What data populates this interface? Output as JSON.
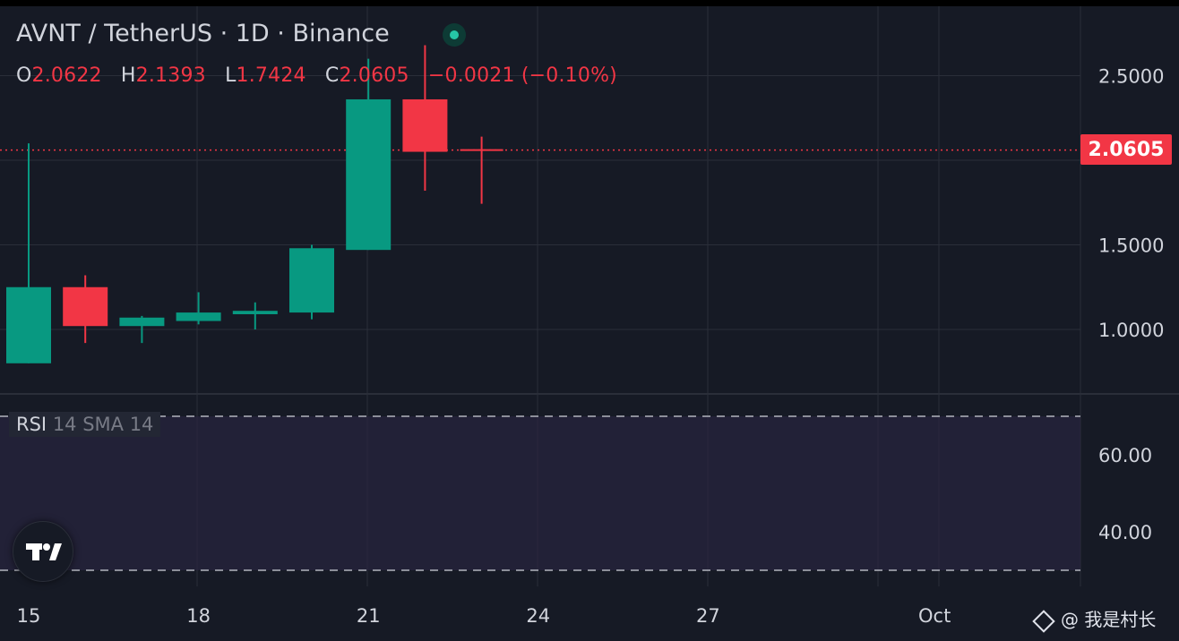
{
  "header": {
    "title": "AVNT / TetherUS · 1D · Binance",
    "ohlc": {
      "o_label": "O",
      "o_value": "2.0622",
      "h_label": "H",
      "h_value": "2.1393",
      "l_label": "L",
      "l_value": "1.7424",
      "c_label": "C",
      "c_value": "2.0605",
      "change": "−0.0021 (−0.10%)"
    }
  },
  "price_tag": "2.0605",
  "rsi_panel": {
    "name": "RSI",
    "params": "14 SMA 14"
  },
  "watermark": "@ 我是村长",
  "colors": {
    "up": "#089981",
    "down": "#f23645",
    "background": "#161a25",
    "grid": "#2a2e39",
    "rsi_band": "#2a2540"
  },
  "chart_data": {
    "type": "candlestick",
    "x_ticks": [
      "15",
      "18",
      "21",
      "24",
      "27",
      "Oct"
    ],
    "y_ticks": [
      "2.5000",
      "1.5000",
      "1.0000"
    ],
    "last_price": 2.0605,
    "candles": [
      {
        "day": "Sep 15",
        "open": 0.8,
        "high": 2.1,
        "low": 0.8,
        "close": 1.25
      },
      {
        "day": "Sep 16",
        "open": 1.25,
        "high": 1.32,
        "low": 0.92,
        "close": 1.02
      },
      {
        "day": "Sep 17",
        "open": 1.02,
        "high": 1.08,
        "low": 0.92,
        "close": 1.07
      },
      {
        "day": "Sep 18",
        "open": 1.05,
        "high": 1.22,
        "low": 1.03,
        "close": 1.1
      },
      {
        "day": "Sep 19",
        "open": 1.09,
        "high": 1.16,
        "low": 1.0,
        "close": 1.11
      },
      {
        "day": "Sep 20",
        "open": 1.1,
        "high": 1.5,
        "low": 1.06,
        "close": 1.48
      },
      {
        "day": "Sep 21",
        "open": 1.47,
        "high": 2.6,
        "low": 1.47,
        "close": 2.36
      },
      {
        "day": "Sep 22",
        "open": 2.36,
        "high": 2.68,
        "low": 1.82,
        "close": 2.05
      },
      {
        "day": "Sep 23",
        "open": 2.0622,
        "high": 2.1393,
        "low": 1.7424,
        "close": 2.0605
      }
    ],
    "rsi": {
      "ticks": [
        "60.00",
        "40.00"
      ],
      "upper_band": 70,
      "lower_band": 30,
      "values": []
    }
  }
}
